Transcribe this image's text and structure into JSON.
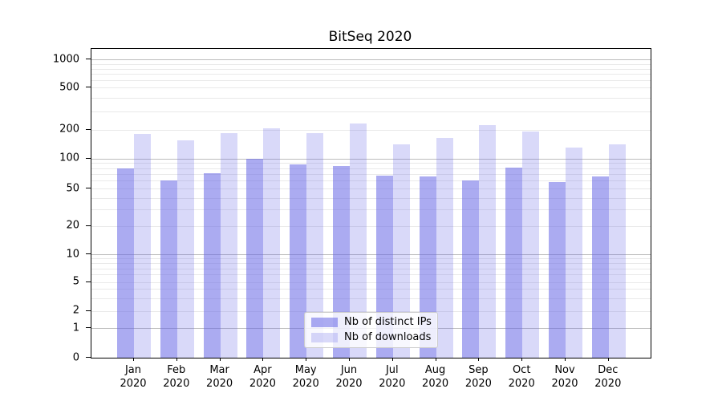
{
  "figure": {
    "title": "BitSeq 2020"
  },
  "chart_data": {
    "type": "bar",
    "title": "BitSeq 2020",
    "categories": [
      "Jan",
      "Feb",
      "Mar",
      "Apr",
      "May",
      "Jun",
      "Jul",
      "Aug",
      "Sep",
      "Oct",
      "Nov",
      "Dec"
    ],
    "x_tick_second_line": "2020",
    "series": [
      {
        "name": "Nb of distinct IPs",
        "color": "#6666e6",
        "alpha": 0.55,
        "values": [
          80,
          60,
          72,
          100,
          88,
          84,
          68,
          66,
          60,
          82,
          58,
          66
        ]
      },
      {
        "name": "Nb of downloads",
        "color": "#6666e6",
        "alpha": 0.25,
        "values": [
          180,
          155,
          185,
          205,
          185,
          230,
          140,
          165,
          220,
          190,
          130,
          140
        ]
      }
    ],
    "yscale": "symlog",
    "y_ticks": [
      0,
      1,
      2,
      5,
      10,
      20,
      50,
      100,
      200,
      500,
      1000
    ],
    "ylim": [
      0,
      1300
    ],
    "grid": "on",
    "legend_position": "lower center",
    "colors": {
      "grid_minor": "#e9e9e9",
      "grid_major": "#bdbdbd",
      "spine": "#000000",
      "text": "#000000",
      "legend_border": "#cccccc"
    }
  }
}
